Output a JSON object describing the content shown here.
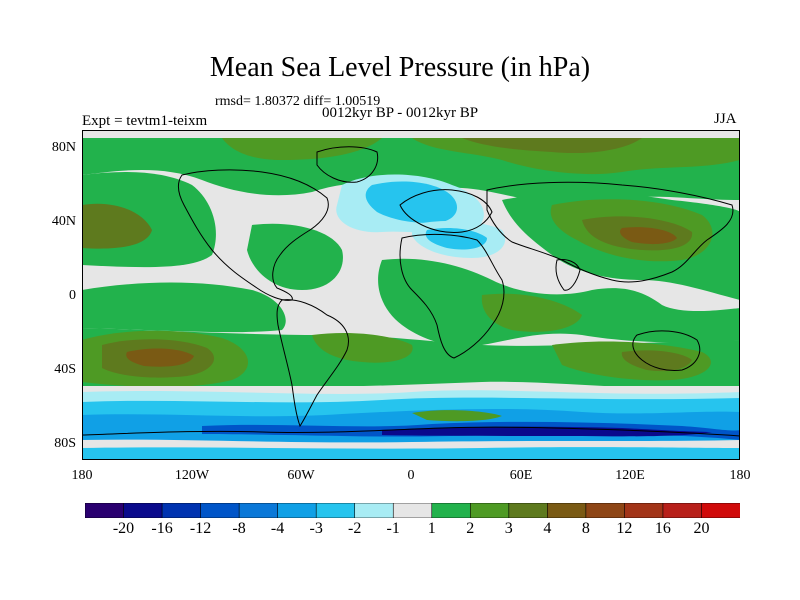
{
  "title": "Mean Sea Level Pressure (in hPa)",
  "stats": "rmsd= 1.80372 diff= 1.00519",
  "period": "0012kyr BP - 0012kyr BP",
  "experiment": "Expt = tevtm1-teixm",
  "season": "JJA",
  "lat_labels": [
    "80N",
    "40N",
    "0",
    "40S",
    "80S"
  ],
  "lon_labels": [
    "180",
    "120W",
    "60W",
    "0",
    "60E",
    "120E",
    "180"
  ],
  "colorbar": {
    "colors": [
      "#2a0070",
      "#0a0a8c",
      "#0033b0",
      "#0055c8",
      "#0a78d8",
      "#10a0e6",
      "#26c4ee",
      "#a8ecf4",
      "#e6e6e6",
      "#22b24c",
      "#4e9a24",
      "#5e7a1e",
      "#7a5a14",
      "#8e4616",
      "#a23418",
      "#b8201a",
      "#d00a0a"
    ],
    "labels": [
      "-20",
      "-16",
      "-12",
      "-8",
      "-4",
      "-3",
      "-2",
      "-1",
      "1",
      "2",
      "3",
      "4",
      "8",
      "12",
      "16",
      "20"
    ]
  },
  "map_palette": {
    "neutral": "#e6e6e6",
    "pos1": "#22b24c",
    "pos2": "#4e9a24",
    "pos3": "#5e7a1e",
    "pos4": "#7a5a14",
    "neg1": "#a8ecf4",
    "neg2": "#26c4ee",
    "neg3": "#10a0e6",
    "neg4": "#0055c8",
    "neg5": "#0a0a8c",
    "coast": "#000000"
  }
}
